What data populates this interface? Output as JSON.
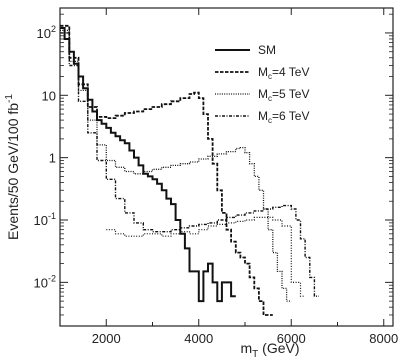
{
  "chart_data": {
    "type": "line",
    "xlabel": "m",
    "xlabel_sub": "T",
    "xlabel_unit": "(GeV)",
    "ylabel": "Events/50 GeV/100 fb",
    "ylabel_sup": "-1",
    "xlim": [
      1000,
      8200
    ],
    "ylim_log10": [
      -2.7,
      2.4
    ],
    "y_scale": "log",
    "x_ticks": [
      {
        "value": 2000,
        "label": "2000"
      },
      {
        "value": 4000,
        "label": "4000"
      },
      {
        "value": 6000,
        "label": "6000"
      },
      {
        "value": 8000,
        "label": "8000"
      }
    ],
    "y_ticks": [
      {
        "log": 2,
        "mant": "",
        "base": "10",
        "exp": "2"
      },
      {
        "log": 1,
        "mant": "",
        "base": "10",
        "exp": ""
      },
      {
        "log": 0,
        "mant": "1",
        "base": "",
        "exp": ""
      },
      {
        "log": -1,
        "mant": "",
        "base": "10",
        "exp": "-1"
      },
      {
        "log": -2,
        "mant": "",
        "base": "10",
        "exp": "-2"
      }
    ],
    "legend_position": "top-right",
    "series": [
      {
        "name": "SM",
        "style": "solid",
        "step": true,
        "points": [
          [
            1000,
            120
          ],
          [
            1100,
            80
          ],
          [
            1200,
            50
          ],
          [
            1300,
            32
          ],
          [
            1400,
            20
          ],
          [
            1500,
            13
          ],
          [
            1600,
            8.5
          ],
          [
            1700,
            5.5
          ],
          [
            1800,
            4
          ],
          [
            1900,
            3.5
          ],
          [
            2000,
            3
          ],
          [
            2100,
            2.5
          ],
          [
            2200,
            2.2
          ],
          [
            2300,
            1.9
          ],
          [
            2400,
            1.7
          ],
          [
            2500,
            1.3
          ],
          [
            2600,
            1.0
          ],
          [
            2700,
            0.75
          ],
          [
            2800,
            0.55
          ],
          [
            2900,
            0.5
          ],
          [
            3000,
            0.45
          ],
          [
            3100,
            0.38
          ],
          [
            3200,
            0.3
          ],
          [
            3300,
            0.22
          ],
          [
            3400,
            0.18
          ],
          [
            3500,
            0.1
          ],
          [
            3600,
            0.06
          ],
          [
            3700,
            0.035
          ],
          [
            3800,
            0.015
          ],
          [
            3900,
            0.015
          ],
          [
            4000,
            0.005
          ],
          [
            4100,
            0.015
          ],
          [
            4200,
            0.02
          ],
          [
            4300,
            0.01
          ],
          [
            4400,
            0.005
          ],
          [
            4500,
            0.01
          ],
          [
            4600,
            0.01
          ],
          [
            4700,
            0.006
          ]
        ]
      },
      {
        "name": "M_c=4 TeV",
        "style": "dashed",
        "step": true,
        "points": [
          [
            1000,
            130
          ],
          [
            1200,
            40
          ],
          [
            1400,
            15
          ],
          [
            1600,
            6.5
          ],
          [
            1800,
            4.5
          ],
          [
            2000,
            4.3
          ],
          [
            2200,
            4.7
          ],
          [
            2400,
            5.2
          ],
          [
            2600,
            5.5
          ],
          [
            2800,
            6
          ],
          [
            3000,
            6.5
          ],
          [
            3200,
            7.2
          ],
          [
            3400,
            8
          ],
          [
            3600,
            9
          ],
          [
            3800,
            10.5
          ],
          [
            3900,
            11
          ],
          [
            4000,
            9
          ],
          [
            4100,
            5
          ],
          [
            4200,
            2
          ],
          [
            4300,
            0.8
          ],
          [
            4400,
            0.3
          ],
          [
            4500,
            0.13
          ],
          [
            4600,
            0.07
          ],
          [
            4700,
            0.045
          ],
          [
            4800,
            0.03
          ],
          [
            4900,
            0.025
          ],
          [
            5000,
            0.02
          ],
          [
            5100,
            0.012
          ],
          [
            5200,
            0.008
          ],
          [
            5300,
            0.005
          ],
          [
            5400,
            0.003
          ],
          [
            5500,
            0.003
          ]
        ]
      },
      {
        "name": "M_c=5 TeV",
        "style": "dotted",
        "step": true,
        "points": [
          [
            1000,
            110
          ],
          [
            1200,
            35
          ],
          [
            1400,
            12
          ],
          [
            1600,
            4
          ],
          [
            1800,
            1.6
          ],
          [
            2000,
            0.9
          ],
          [
            2200,
            0.7
          ],
          [
            2400,
            0.6
          ],
          [
            2600,
            0.55
          ],
          [
            2800,
            0.6
          ],
          [
            3000,
            0.65
          ],
          [
            3200,
            0.7
          ],
          [
            3400,
            0.75
          ],
          [
            3600,
            0.8
          ],
          [
            3800,
            0.85
          ],
          [
            4000,
            0.95
          ],
          [
            4200,
            1.05
          ],
          [
            4400,
            1.15
          ],
          [
            4600,
            1.25
          ],
          [
            4800,
            1.4
          ],
          [
            4900,
            1.45
          ],
          [
            5000,
            1.2
          ],
          [
            5100,
            0.8
          ],
          [
            5200,
            0.5
          ],
          [
            5300,
            0.3
          ],
          [
            5400,
            0.15
          ],
          [
            5500,
            0.07
          ],
          [
            5600,
            0.03
          ],
          [
            5700,
            0.015
          ],
          [
            5800,
            0.008
          ],
          [
            5900,
            0.005
          ]
        ]
      },
      {
        "name": "M_c=6 TeV",
        "style": "dashdot",
        "step": true,
        "points": [
          [
            1000,
            100
          ],
          [
            1200,
            30
          ],
          [
            1400,
            8
          ],
          [
            1600,
            2.5
          ],
          [
            1800,
            0.9
          ],
          [
            2000,
            0.45
          ],
          [
            2200,
            0.22
          ],
          [
            2400,
            0.13
          ],
          [
            2600,
            0.09
          ],
          [
            2800,
            0.07
          ],
          [
            3000,
            0.065
          ],
          [
            3200,
            0.065
          ],
          [
            3400,
            0.07
          ],
          [
            3600,
            0.075
          ],
          [
            3800,
            0.08
          ],
          [
            4000,
            0.085
          ],
          [
            4200,
            0.09
          ],
          [
            4400,
            0.1
          ],
          [
            4600,
            0.11
          ],
          [
            4800,
            0.12
          ],
          [
            5000,
            0.13
          ],
          [
            5200,
            0.14
          ],
          [
            5400,
            0.15
          ],
          [
            5600,
            0.16
          ],
          [
            5800,
            0.17
          ],
          [
            6000,
            0.15
          ],
          [
            6100,
            0.1
          ],
          [
            6200,
            0.05
          ],
          [
            6300,
            0.025
          ],
          [
            6400,
            0.012
          ],
          [
            6500,
            0.006
          ]
        ]
      },
      {
        "name": "",
        "style": "dotted-band",
        "step": true,
        "points": [
          [
            2000,
            0.07
          ],
          [
            2200,
            0.06
          ],
          [
            2400,
            0.055
          ],
          [
            2600,
            0.055
          ],
          [
            2800,
            0.06
          ],
          [
            3000,
            0.06
          ],
          [
            3200,
            0.055
          ],
          [
            3400,
            0.06
          ],
          [
            3600,
            0.065
          ],
          [
            3800,
            0.06
          ],
          [
            4000,
            0.07
          ],
          [
            4200,
            0.08
          ],
          [
            4400,
            0.085
          ],
          [
            4600,
            0.09
          ],
          [
            4800,
            0.095
          ],
          [
            5000,
            0.1
          ],
          [
            5200,
            0.11
          ],
          [
            5400,
            0.11
          ],
          [
            5600,
            0.1
          ],
          [
            5800,
            0.08
          ],
          [
            6000,
            0.01
          ],
          [
            6200,
            0.006
          ]
        ]
      }
    ],
    "legend": [
      {
        "main": "SM",
        "sub": "",
        "rest": "",
        "style": "solid"
      },
      {
        "main": "M",
        "sub": "c",
        "rest": "=4 TeV",
        "style": "dashed"
      },
      {
        "main": "M",
        "sub": "c",
        "rest": "=5 TeV",
        "style": "dotted"
      },
      {
        "main": "M",
        "sub": "c",
        "rest": "=6 TeV",
        "style": "dashdot"
      }
    ]
  }
}
